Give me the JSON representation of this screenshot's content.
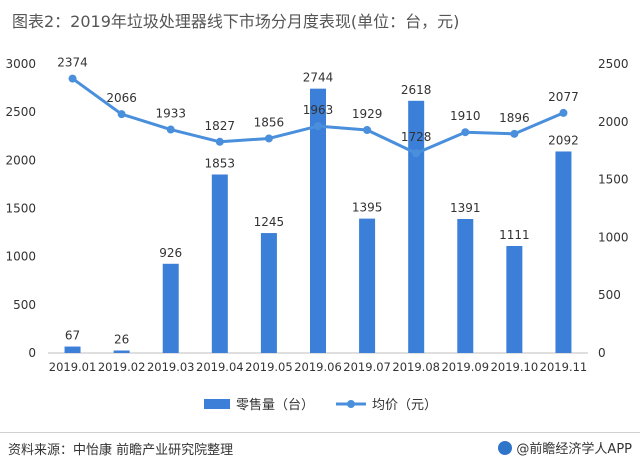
{
  "title": "图表2：2019年垃圾处理器线下市场分月度表现(单位：台，元)",
  "source": "资料来源：中怡康 前瞻产业研究院整理",
  "brand": "@前瞻经济学人APP",
  "colors": {
    "bar": "#3b7fd9",
    "line": "#4a8fdc"
  },
  "chart_data": {
    "type": "bar+line",
    "categories": [
      "2019.01",
      "2019.02",
      "2019.03",
      "2019.04",
      "2019.05",
      "2019.06",
      "2019.07",
      "2019.08",
      "2019.09",
      "2019.10",
      "2019.11"
    ],
    "series": [
      {
        "name": "零售量（台）",
        "type": "bar",
        "axis": "left",
        "values": [
          67,
          26,
          926,
          1853,
          1245,
          2744,
          1395,
          2618,
          1391,
          1111,
          2092
        ]
      },
      {
        "name": "均价（元）",
        "type": "line",
        "axis": "right",
        "values": [
          2374,
          2066,
          1933,
          1827,
          1856,
          1963,
          1929,
          1728,
          1910,
          1896,
          2077
        ]
      }
    ],
    "ylim_left": [
      0,
      3000
    ],
    "yticks_left": [
      0,
      500,
      1000,
      1500,
      2000,
      2500,
      3000
    ],
    "ylim_right": [
      0,
      2500
    ],
    "yticks_right": [
      0,
      500,
      1000,
      1500,
      2000,
      2500
    ],
    "legend_position": "bottom-center",
    "grid": false
  }
}
